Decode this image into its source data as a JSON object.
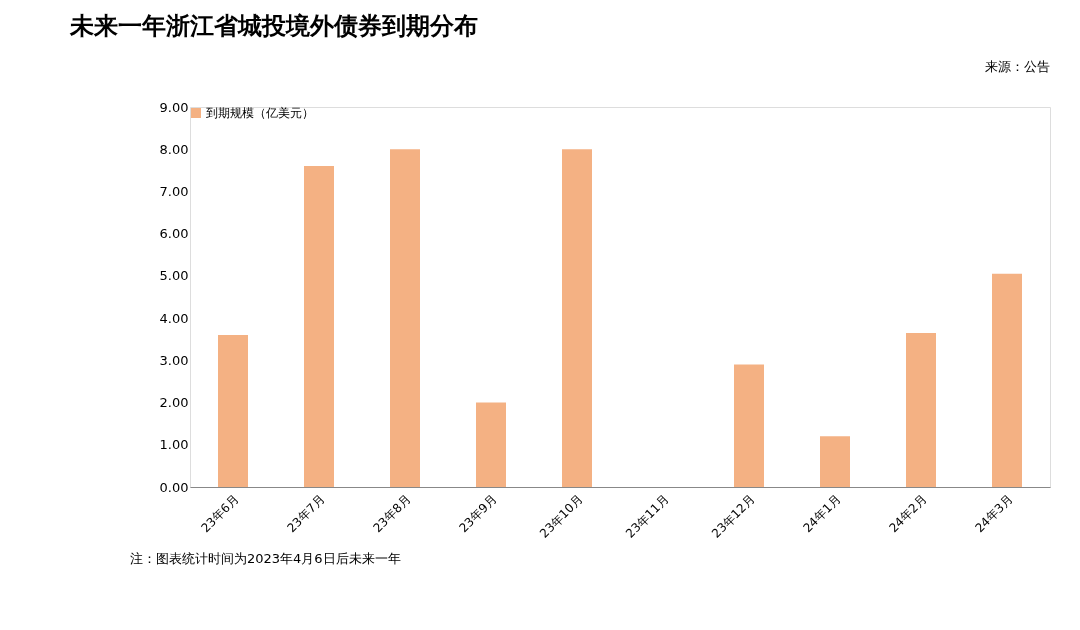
{
  "chart_data": {
    "type": "bar",
    "title": "未来一年浙江省城投境外债券到期分布",
    "categories": [
      "23年6月",
      "23年7月",
      "23年8月",
      "23年9月",
      "23年10月",
      "23年11月",
      "23年12月",
      "24年1月",
      "24年2月",
      "24年3月"
    ],
    "series": [
      {
        "name": "到期规模（亿美元）",
        "color": "#f4b183",
        "values": [
          3.6,
          7.6,
          8.0,
          2.0,
          8.0,
          0,
          2.9,
          1.2,
          3.65,
          5.05
        ]
      }
    ],
    "ylim": [
      0,
      9
    ],
    "yticks": [
      {
        "value": 0,
        "label": "0.00"
      },
      {
        "value": 1,
        "label": "1.00"
      },
      {
        "value": 2,
        "label": "2.00"
      },
      {
        "value": 3,
        "label": "3.00"
      },
      {
        "value": 4,
        "label": "4.00"
      },
      {
        "value": 5,
        "label": "5.00"
      },
      {
        "value": 6,
        "label": "6.00"
      },
      {
        "value": 7,
        "label": "7.00"
      },
      {
        "value": 8,
        "label": "8.00"
      },
      {
        "value": 9,
        "label": "9.00"
      }
    ],
    "grid": false,
    "legend": "top left",
    "annotations": [
      "来源：公告",
      "注：图表统计时间为2023年4月6日后未来一年"
    ]
  }
}
